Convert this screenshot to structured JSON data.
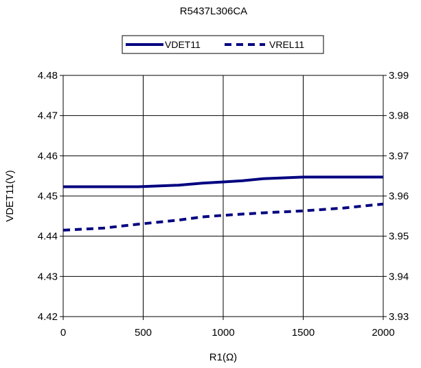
{
  "chart_data": {
    "type": "line",
    "title": "R5437L306CA",
    "xlabel": "R1(Ω)",
    "ylabel": "VDET11(V)",
    "y2label": "",
    "xlim": [
      0,
      2000
    ],
    "ylim": [
      4.42,
      4.48
    ],
    "y2lim": [
      3.93,
      3.99
    ],
    "x_ticks": [
      "0",
      "500",
      "1000",
      "1500",
      "2000"
    ],
    "y_ticks": [
      "4.42",
      "4.43",
      "4.44",
      "4.45",
      "4.46",
      "4.47",
      "4.48"
    ],
    "y2_ticks": [
      "3.93",
      "3.94",
      "3.95",
      "3.96",
      "3.97",
      "3.98",
      "3.99"
    ],
    "grid": true,
    "legend_position": "top-center",
    "series": [
      {
        "name": "VDET11",
        "axis": "left",
        "style": "solid",
        "color": "#000080",
        "x": [
          0,
          250,
          470,
          720,
          870,
          1000,
          1120,
          1250,
          1500,
          1750,
          2000
        ],
        "values": [
          4.4523,
          4.4523,
          4.4523,
          4.4527,
          4.4532,
          4.4535,
          4.4538,
          4.4543,
          4.4547,
          4.4547,
          4.4547
        ]
      },
      {
        "name": "VREL11",
        "axis": "right",
        "style": "dashed",
        "color": "#000080",
        "x": [
          0,
          250,
          470,
          720,
          870,
          1000,
          1120,
          1250,
          1500,
          1750,
          2000
        ],
        "values": [
          3.9515,
          3.952,
          3.953,
          3.954,
          3.9548,
          3.9552,
          3.9555,
          3.9558,
          3.9563,
          3.957,
          3.958
        ]
      }
    ]
  }
}
